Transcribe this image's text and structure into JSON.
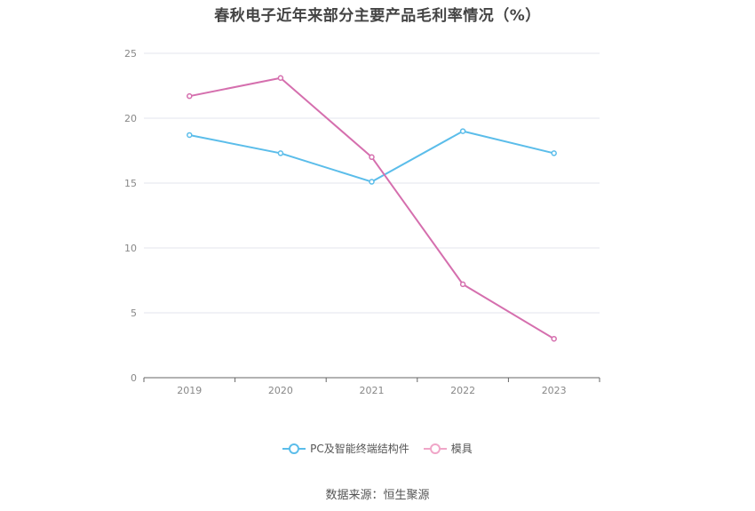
{
  "chart_data": {
    "type": "line",
    "title": "春秋电子近年来部分主要产品毛利率情况（%）",
    "categories": [
      "2019",
      "2020",
      "2021",
      "2022",
      "2023"
    ],
    "series": [
      {
        "name": "PC及智能终端结构件",
        "values": [
          18.7,
          17.3,
          15.1,
          19.0,
          17.3
        ],
        "color": "#5bbdea"
      },
      {
        "name": "模具",
        "values": [
          21.7,
          23.1,
          17.0,
          7.2,
          3.0
        ],
        "color": "#d56fae"
      }
    ],
    "ylim": [
      0,
      25
    ],
    "yticks": [
      0,
      5,
      10,
      15,
      20,
      25
    ],
    "grid": true,
    "legend_position": "bottom",
    "source": "数据来源：恒生聚源"
  }
}
